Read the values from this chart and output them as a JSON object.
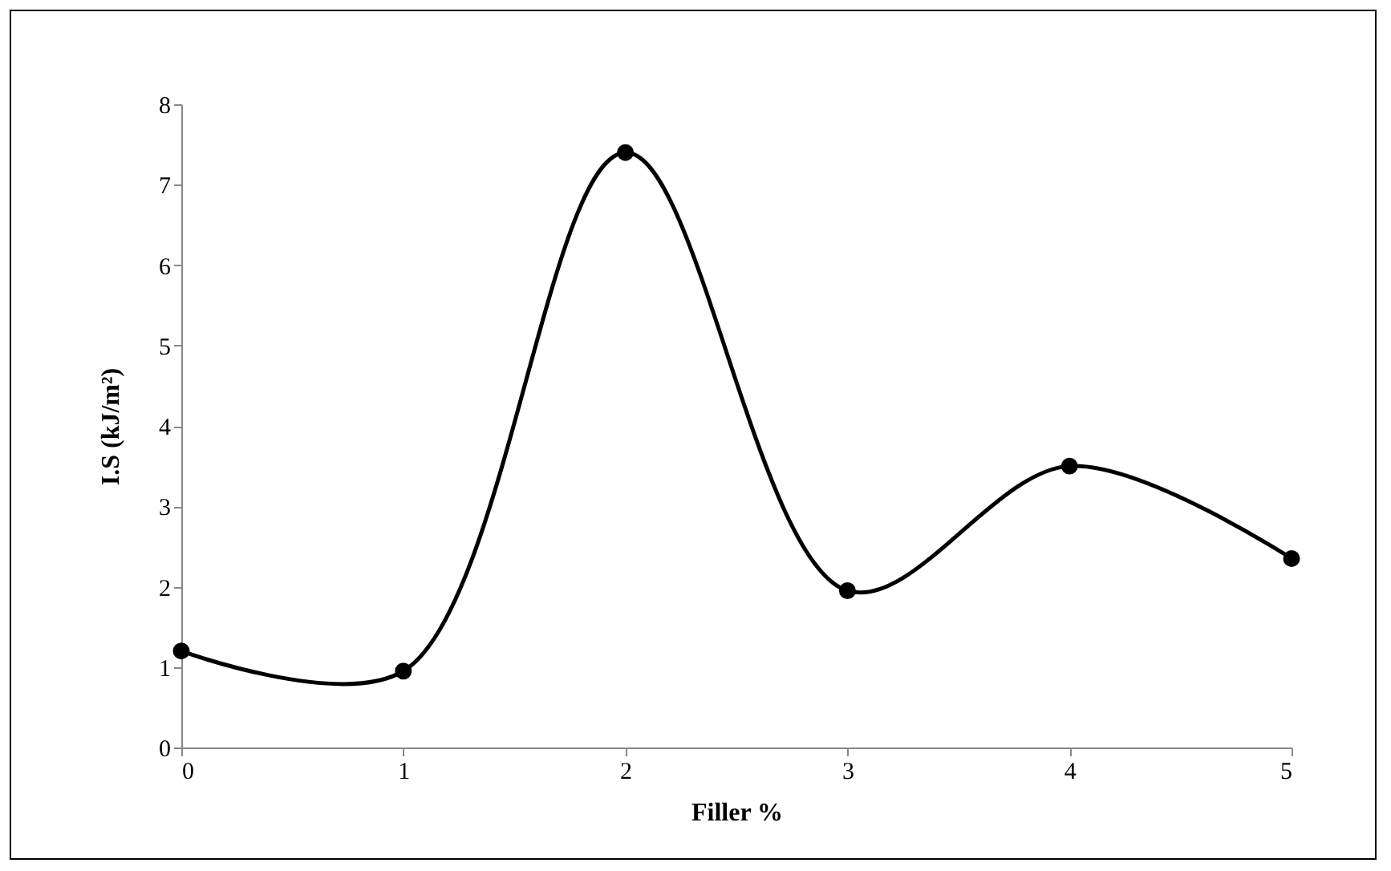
{
  "chart_data": {
    "type": "line",
    "xlabel": "Filler %",
    "ylabel": "I.S (kJ/m²)",
    "x": [
      0,
      1,
      2,
      3,
      4,
      5
    ],
    "series": [
      {
        "color": "#000000",
        "values": [
          1.2,
          0.95,
          7.4,
          1.95,
          3.5,
          2.35
        ]
      }
    ],
    "xlim": [
      0,
      5
    ],
    "xticks": [
      0,
      1,
      2,
      3,
      4,
      5
    ],
    "ylim": [
      0,
      8
    ],
    "yticks": [
      0,
      1,
      2,
      3,
      4,
      5,
      6,
      7,
      8
    ],
    "grid": false,
    "legend": false,
    "marker": "circle",
    "line_style": "solid"
  }
}
